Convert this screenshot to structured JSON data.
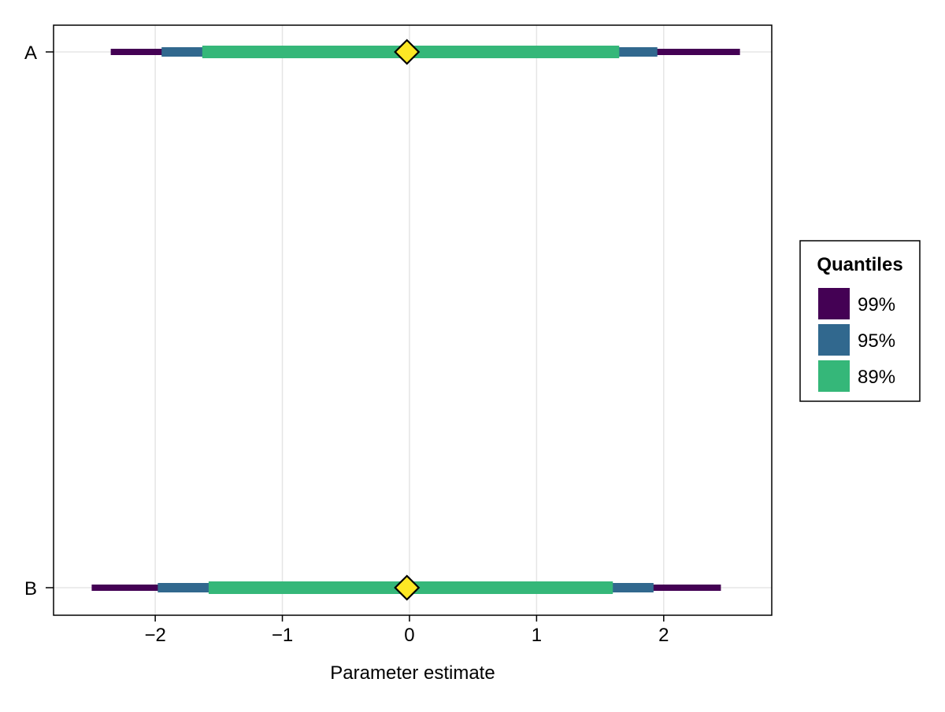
{
  "chart_data": {
    "type": "interval",
    "xlabel": "Parameter estimate",
    "ylabel": "",
    "xlim": [
      -2.8,
      2.85
    ],
    "xticks": [
      -2,
      -1,
      0,
      1,
      2
    ],
    "xtick_labels": [
      "−2",
      "−1",
      "0",
      "1",
      "2"
    ],
    "categories": [
      "A",
      "B"
    ],
    "grid": true,
    "legend": {
      "title": "Quantiles",
      "placement": "right",
      "entries": [
        "99%",
        "95%",
        "89%"
      ]
    },
    "series": [
      {
        "category": "A",
        "point": -0.02,
        "intervals": [
          {
            "quantile": "99%",
            "low": -2.35,
            "high": 2.6
          },
          {
            "quantile": "95%",
            "low": -1.95,
            "high": 1.95
          },
          {
            "quantile": "89%",
            "low": -1.63,
            "high": 1.65
          }
        ]
      },
      {
        "category": "B",
        "point": -0.02,
        "intervals": [
          {
            "quantile": "99%",
            "low": -2.5,
            "high": 2.45
          },
          {
            "quantile": "95%",
            "low": -1.98,
            "high": 1.92
          },
          {
            "quantile": "89%",
            "low": -1.58,
            "high": 1.6
          }
        ]
      }
    ]
  },
  "colors": {
    "q99": "#440154",
    "q95": "#31688e",
    "q89": "#35b779",
    "point": "#fde725",
    "grid": "#e5e5e5",
    "axis": "#000000"
  }
}
